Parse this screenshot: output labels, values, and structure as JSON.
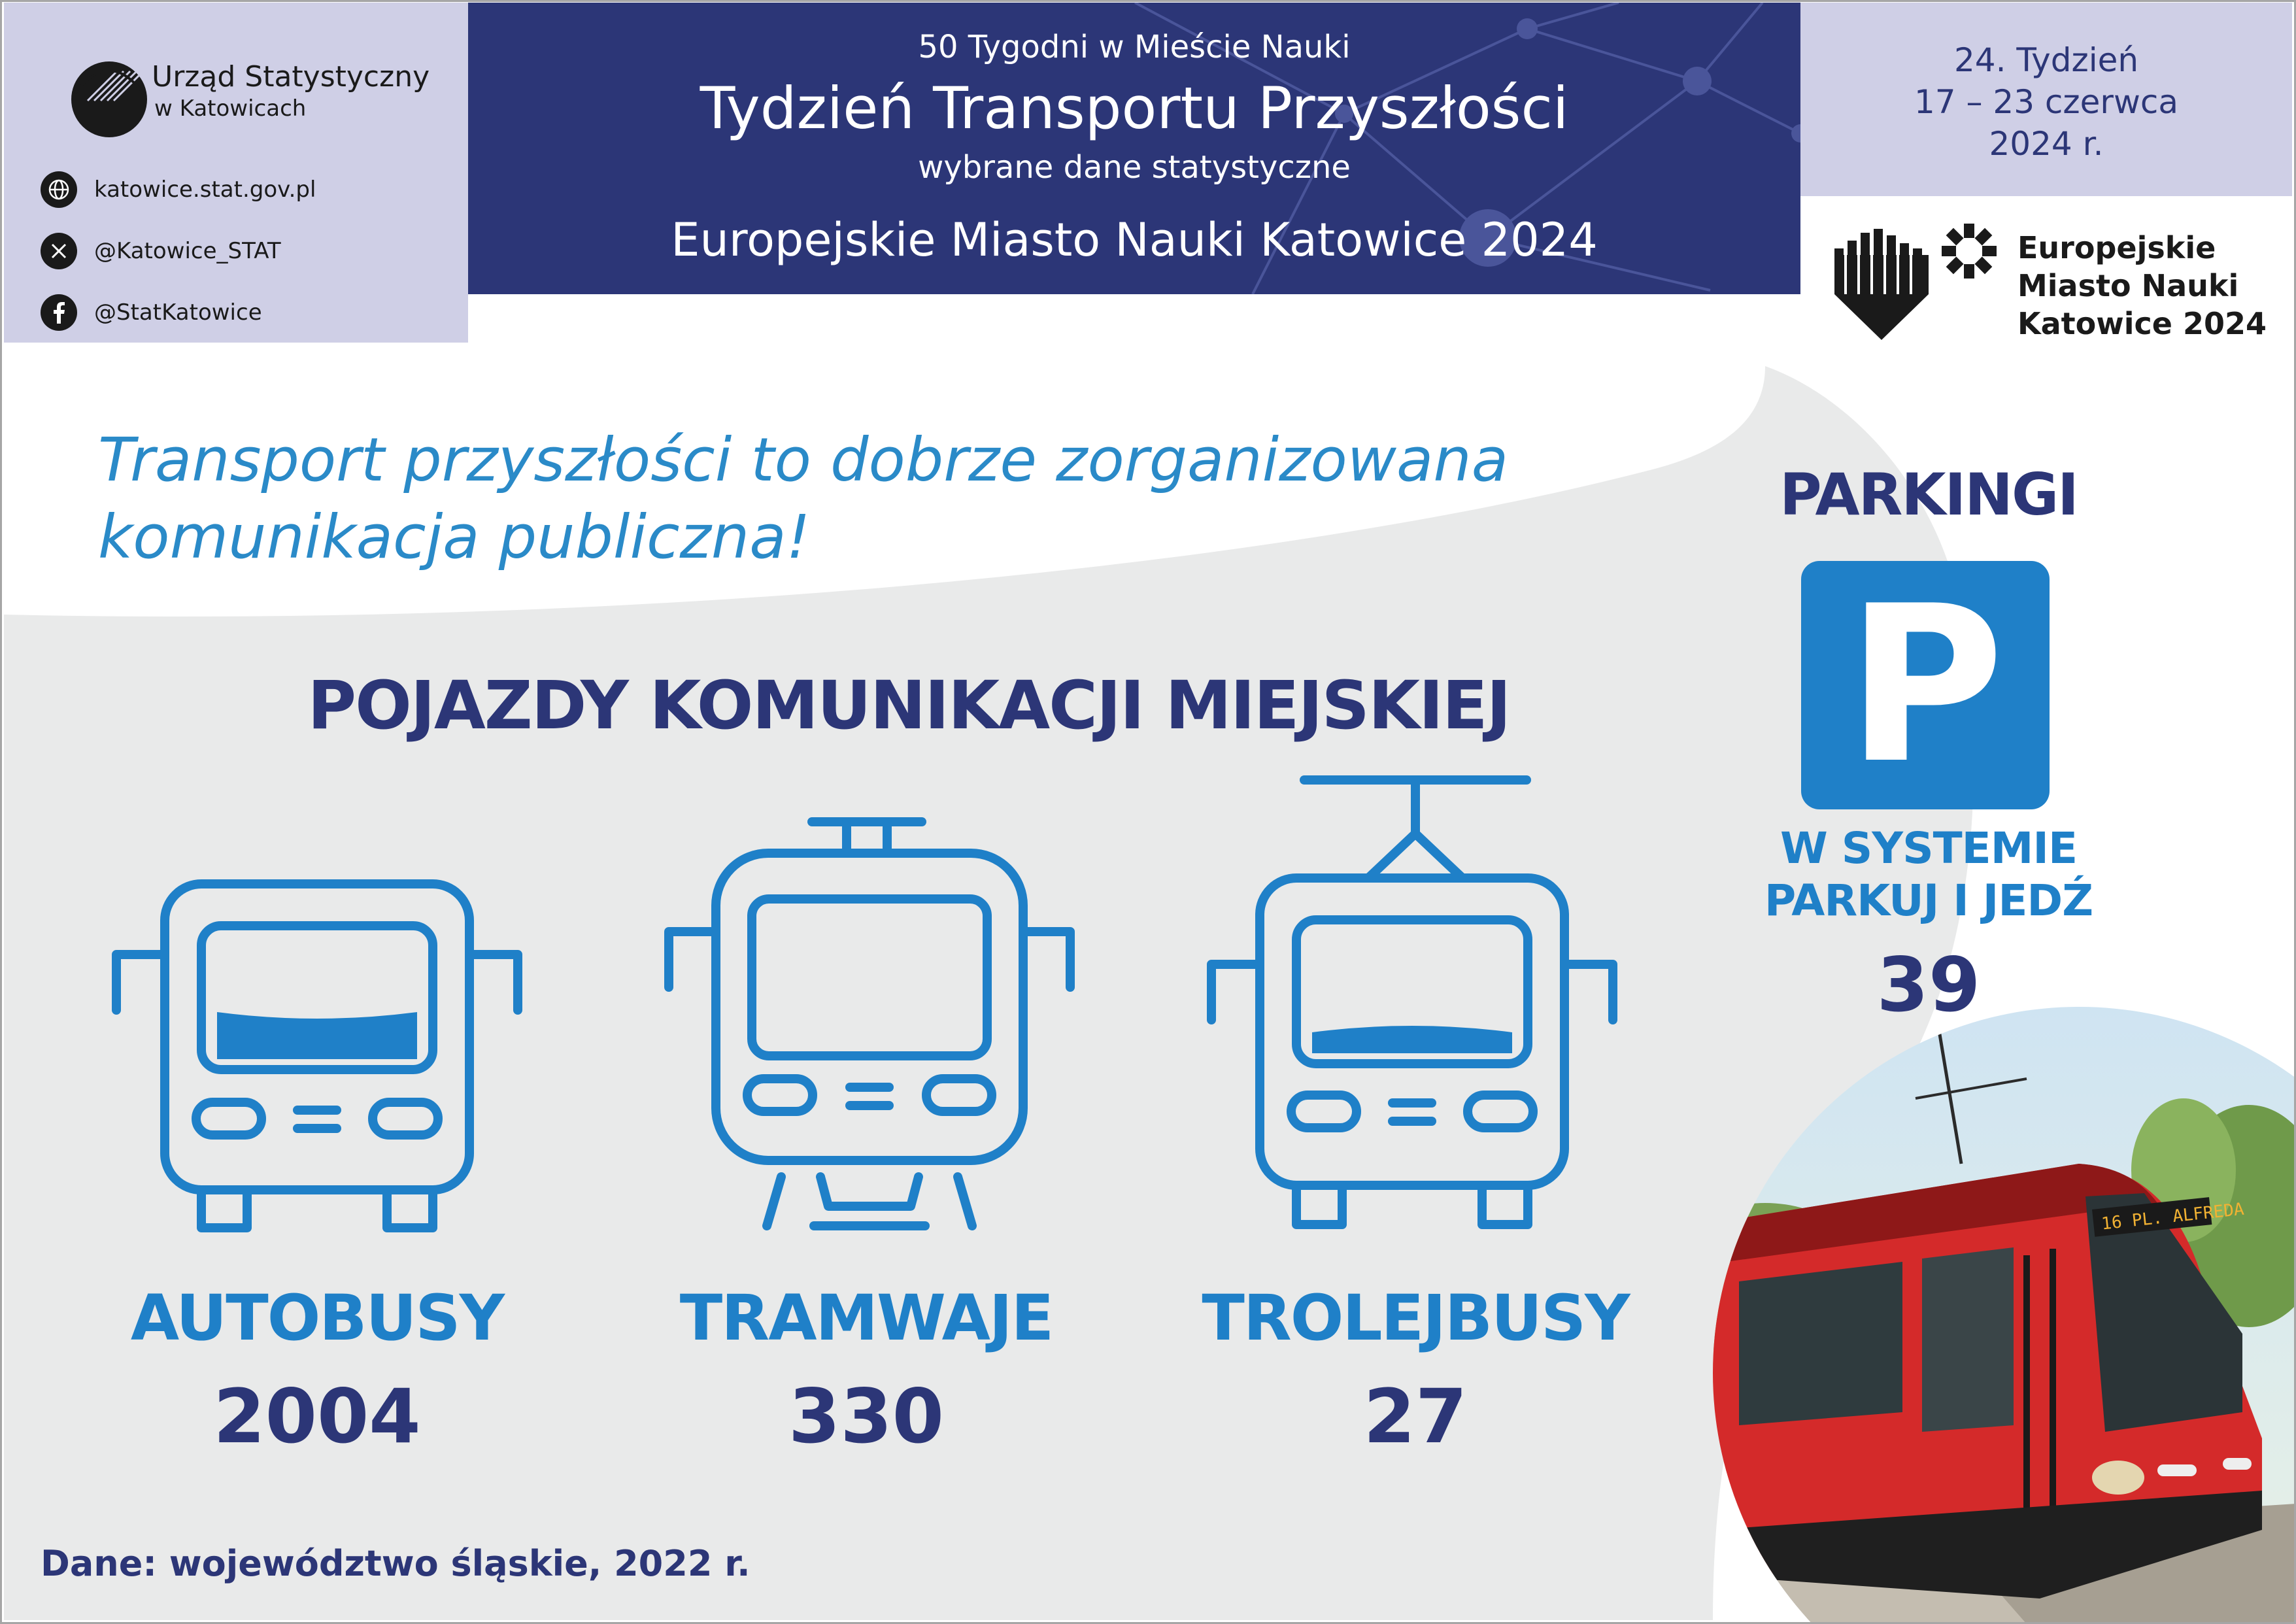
{
  "institution": {
    "line1": "Urząd Statystyczny",
    "line2": "w Katowicach"
  },
  "contacts": [
    {
      "icon": "globe-icon",
      "text": "katowice.stat.gov.pl"
    },
    {
      "icon": "x-icon",
      "text": "@Katowice_STAT"
    },
    {
      "icon": "facebook-icon",
      "text": "@StatKatowice"
    }
  ],
  "header": {
    "series": "50 Tygodni w Mieście Nauki",
    "title": "Tydzień Transportu Przyszłości",
    "subtitle": "wybrane dane statystyczne",
    "event": "Europejskie Miasto Nauki Katowice 2024"
  },
  "week": {
    "number": "24. Tydzień",
    "dates": "17 – 23 czerwca",
    "year": "2024 r."
  },
  "emn_logo": {
    "line1": "Europejskie",
    "line2": "Miasto Nauki",
    "line3": "Katowice 2024"
  },
  "slogan": {
    "line1": "Transport przyszłości to dobrze zorganizowana",
    "line2": "komunikacja publiczna!"
  },
  "vehicles": {
    "title": "POJAZDY KOMUNIKACJI MIEJSKIEJ",
    "items": [
      {
        "icon": "bus-icon",
        "label": "AUTOBUSY",
        "value": "2004"
      },
      {
        "icon": "tram-icon",
        "label": "TRAMWAJE",
        "value": "330"
      },
      {
        "icon": "trolleybus-icon",
        "label": "TROLEJBUSY",
        "value": "27"
      }
    ]
  },
  "parking": {
    "title": "PARKINGI",
    "sign_letter": "P",
    "sub_line1": "W SYSTEMIE",
    "sub_line2": "PARKUJ I JEDŹ",
    "value": "39"
  },
  "photo": {
    "destination_display": "16 PL. ALFREDA"
  },
  "source": "Dane: województwo śląskie, 2022 r.",
  "colors": {
    "navy": "#2c3677",
    "blue": "#1f80c8",
    "lavender": "#cfcfe6",
    "light_gray": "#e9eaea",
    "tram_red": "#d42a2a"
  }
}
